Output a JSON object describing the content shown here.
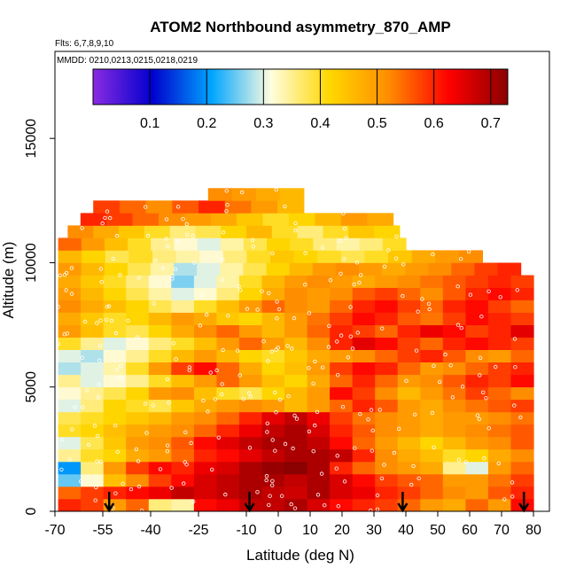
{
  "chart_data": {
    "type": "heatmap",
    "title": "ATOM2 Northbound asymmetry_870_AMP",
    "flights_note": "Flts: 6,7,8,9,10",
    "dates_note": "MMDD: 0210,0213,0215,0218,0219",
    "xlabel": "Latitude (deg N)",
    "ylabel": "Altitude (m)",
    "xlim": [
      -70,
      85
    ],
    "ylim": [
      0,
      18500
    ],
    "x_ticks": [
      -70,
      -55,
      -40,
      -25,
      -10,
      0,
      10,
      20,
      30,
      40,
      50,
      60,
      70,
      80
    ],
    "y_ticks": [
      0,
      5000,
      10000,
      15000
    ],
    "colorbar": {
      "range": [
        0.0,
        0.73
      ],
      "ticks": [
        0.1,
        0.2,
        0.3,
        0.4,
        0.5,
        0.6,
        0.7
      ],
      "colors": [
        "#8a2be2",
        "#0000cd",
        "#00a5ff",
        "#fffde0",
        "#ffd700",
        "#ff8c00",
        "#ff0000",
        "#8b0000"
      ]
    },
    "arrow_latitudes": [
      -53,
      -9,
      39,
      77
    ],
    "layer_altitude_step": 500,
    "layers": [
      {
        "alt": 0,
        "lat_range": [
          -69,
          80
        ],
        "values": [
          0.6,
          0.58,
          0.5,
          0.55,
          0.36,
          0.34,
          0.62,
          0.64,
          0.68,
          0.68,
          0.7,
          0.66,
          0.62,
          0.6,
          0.58,
          0.55,
          0.5,
          0.48,
          0.55,
          0.5,
          0.62
        ]
      },
      {
        "alt": 500,
        "lat_range": [
          -69,
          80
        ],
        "values": [
          0.55,
          0.58,
          0.6,
          0.62,
          0.64,
          0.68,
          0.66,
          0.68,
          0.7,
          0.68,
          0.67,
          0.7,
          0.66,
          0.64,
          0.6,
          0.58,
          0.55,
          0.52,
          0.5,
          0.56,
          0.6
        ]
      },
      {
        "alt": 1000,
        "lat_range": [
          -69,
          80
        ],
        "values": [
          0.25,
          0.32,
          0.45,
          0.52,
          0.58,
          0.62,
          0.66,
          0.68,
          0.7,
          0.7,
          0.68,
          0.7,
          0.66,
          0.62,
          0.58,
          0.56,
          0.55,
          0.5,
          0.5,
          0.54,
          0.58
        ]
      },
      {
        "alt": 1500,
        "lat_range": [
          -69,
          80
        ],
        "values": [
          0.2,
          0.36,
          0.5,
          0.58,
          0.62,
          0.6,
          0.64,
          0.66,
          0.7,
          0.72,
          0.73,
          0.7,
          0.6,
          0.55,
          0.52,
          0.5,
          0.48,
          0.35,
          0.3,
          0.5,
          0.55
        ]
      },
      {
        "alt": 2000,
        "lat_range": [
          -69,
          80
        ],
        "values": [
          0.35,
          0.4,
          0.42,
          0.48,
          0.5,
          0.55,
          0.6,
          0.62,
          0.65,
          0.68,
          0.7,
          0.7,
          0.68,
          0.6,
          0.52,
          0.48,
          0.45,
          0.4,
          0.42,
          0.48,
          0.52
        ]
      },
      {
        "alt": 2500,
        "lat_range": [
          -69,
          80
        ],
        "values": [
          0.3,
          0.38,
          0.44,
          0.5,
          0.52,
          0.56,
          0.62,
          0.65,
          0.68,
          0.7,
          0.7,
          0.68,
          0.62,
          0.55,
          0.5,
          0.46,
          0.42,
          0.46,
          0.5,
          0.52,
          0.56
        ]
      },
      {
        "alt": 3000,
        "lat_range": [
          -69,
          80
        ],
        "values": [
          0.4,
          0.42,
          0.45,
          0.48,
          0.5,
          0.52,
          0.55,
          0.6,
          0.64,
          0.68,
          0.7,
          0.66,
          0.6,
          0.56,
          0.52,
          0.5,
          0.48,
          0.5,
          0.52,
          0.54,
          0.56
        ]
      },
      {
        "alt": 3500,
        "lat_range": [
          -69,
          80
        ],
        "values": [
          0.38,
          0.4,
          0.42,
          0.44,
          0.46,
          0.5,
          0.52,
          0.55,
          0.6,
          0.65,
          0.68,
          0.64,
          0.58,
          0.54,
          0.52,
          0.5,
          0.48,
          0.5,
          0.5,
          0.52,
          0.54
        ]
      },
      {
        "alt": 4000,
        "lat_range": [
          -69,
          80
        ],
        "values": [
          0.3,
          0.36,
          0.42,
          0.4,
          0.38,
          0.44,
          0.48,
          0.5,
          0.52,
          0.5,
          0.46,
          0.5,
          0.55,
          0.6,
          0.56,
          0.5,
          0.48,
          0.52,
          0.54,
          0.56,
          0.58
        ]
      },
      {
        "alt": 4500,
        "lat_range": [
          -69,
          80
        ],
        "values": [
          0.32,
          0.35,
          0.38,
          0.42,
          0.5,
          0.52,
          0.45,
          0.4,
          0.38,
          0.42,
          0.46,
          0.5,
          0.62,
          0.58,
          0.52,
          0.46,
          0.5,
          0.54,
          0.58,
          0.55,
          0.52
        ]
      },
      {
        "alt": 5000,
        "lat_range": [
          -69,
          80
        ],
        "values": [
          0.35,
          0.3,
          0.32,
          0.35,
          0.4,
          0.45,
          0.5,
          0.55,
          0.5,
          0.45,
          0.42,
          0.48,
          0.55,
          0.6,
          0.55,
          0.5,
          0.52,
          0.56,
          0.6,
          0.58,
          0.62
        ]
      },
      {
        "alt": 5500,
        "lat_range": [
          -69,
          80
        ],
        "values": [
          0.28,
          0.3,
          0.34,
          0.4,
          0.5,
          0.58,
          0.62,
          0.55,
          0.48,
          0.42,
          0.45,
          0.5,
          0.58,
          0.62,
          0.6,
          0.55,
          0.5,
          0.52,
          0.55,
          0.58,
          0.6
        ]
      },
      {
        "alt": 6000,
        "lat_range": [
          -69,
          80
        ],
        "values": [
          0.3,
          0.28,
          0.32,
          0.35,
          0.4,
          0.46,
          0.5,
          0.46,
          0.42,
          0.4,
          0.44,
          0.48,
          0.5,
          0.52,
          0.55,
          0.58,
          0.6,
          0.56,
          0.52,
          0.5,
          0.55
        ]
      },
      {
        "alt": 6500,
        "lat_range": [
          -69,
          80
        ],
        "values": [
          0.4,
          0.35,
          0.3,
          0.32,
          0.36,
          0.4,
          0.45,
          0.5,
          0.55,
          0.5,
          0.46,
          0.52,
          0.6,
          0.65,
          0.62,
          0.58,
          0.55,
          0.6,
          0.62,
          0.6,
          0.58
        ]
      },
      {
        "alt": 7000,
        "lat_range": [
          -69,
          80
        ],
        "values": [
          0.5,
          0.45,
          0.4,
          0.38,
          0.42,
          0.48,
          0.52,
          0.55,
          0.5,
          0.46,
          0.5,
          0.55,
          0.6,
          0.58,
          0.55,
          0.6,
          0.64,
          0.62,
          0.58,
          0.6,
          0.65
        ]
      },
      {
        "alt": 7500,
        "lat_range": [
          -69,
          80
        ],
        "values": [
          0.48,
          0.44,
          0.4,
          0.42,
          0.46,
          0.5,
          0.48,
          0.44,
          0.42,
          0.46,
          0.5,
          0.54,
          0.58,
          0.62,
          0.6,
          0.56,
          0.54,
          0.58,
          0.62,
          0.6,
          0.58
        ]
      },
      {
        "alt": 8000,
        "lat_range": [
          -69,
          80
        ],
        "values": [
          0.52,
          0.48,
          0.45,
          0.42,
          0.38,
          0.35,
          0.4,
          0.45,
          0.5,
          0.55,
          0.52,
          0.5,
          0.55,
          0.6,
          0.62,
          0.58,
          0.55,
          0.6,
          0.62,
          0.58,
          0.55
        ]
      },
      {
        "alt": 8500,
        "lat_range": [
          -69,
          80
        ],
        "values": [
          0.5,
          0.46,
          0.42,
          0.38,
          0.34,
          0.3,
          0.32,
          0.36,
          0.42,
          0.48,
          0.52,
          0.5,
          0.52,
          0.56,
          0.58,
          0.55,
          0.52,
          0.56,
          0.6,
          0.62,
          0.6
        ]
      },
      {
        "alt": 9000,
        "lat_range": [
          -69,
          80
        ],
        "values": [
          0.48,
          0.44,
          0.4,
          0.36,
          0.32,
          0.26,
          0.3,
          0.34,
          0.4,
          0.46,
          0.5,
          0.52,
          0.5,
          0.48,
          0.5,
          0.52,
          0.54,
          0.56,
          0.58,
          0.6,
          0.58
        ]
      },
      {
        "alt": 9500,
        "lat_range": [
          -69,
          76
        ],
        "values": [
          0.5,
          0.46,
          0.42,
          0.38,
          0.34,
          0.28,
          0.3,
          0.34,
          0.38,
          0.42,
          0.46,
          0.5,
          0.52,
          0.5,
          0.48,
          0.5,
          0.52,
          0.55,
          0.58,
          0.6
        ]
      },
      {
        "alt": 10000,
        "lat_range": [
          -69,
          64
        ],
        "values": [
          0.46,
          0.42,
          0.38,
          0.4,
          0.36,
          0.34,
          0.32,
          0.36,
          0.4,
          0.44,
          0.42,
          0.4,
          0.38,
          0.4,
          0.44,
          0.48,
          0.5,
          0.52
        ]
      },
      {
        "alt": 10500,
        "lat_range": [
          -69,
          40
        ],
        "values": [
          0.55,
          0.5,
          0.45,
          0.4,
          0.35,
          0.32,
          0.3,
          0.34,
          0.38,
          0.42,
          0.4,
          0.36,
          0.34,
          0.36,
          0.4
        ]
      },
      {
        "alt": 11000,
        "lat_range": [
          -66,
          38
        ],
        "values": [
          0.52,
          0.48,
          0.44,
          0.4,
          0.36,
          0.38,
          0.42,
          0.46,
          0.4,
          0.36,
          0.4,
          0.44,
          0.42
        ]
      },
      {
        "alt": 11500,
        "lat_range": [
          -62,
          36
        ],
        "values": [
          0.6,
          0.58,
          0.55,
          0.52,
          0.5,
          0.48,
          0.44,
          0.4,
          0.42,
          0.46,
          0.5,
          0.48
        ]
      },
      {
        "alt": 12000,
        "lat_range": [
          -58,
          8
        ],
        "values": [
          0.58,
          0.55,
          0.52,
          0.56,
          0.6,
          0.54,
          0.5,
          0.46
        ]
      },
      {
        "alt": 12500,
        "lat_range": [
          -22,
          8
        ],
        "values": [
          0.52,
          0.5,
          0.48,
          0.46
        ]
      }
    ]
  }
}
